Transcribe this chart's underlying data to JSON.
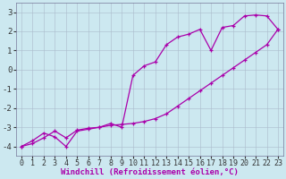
{
  "title": "",
  "xlabel": "Windchill (Refroidissement éolien,°C)",
  "ylabel": "",
  "xlim": [
    -0.5,
    23.5
  ],
  "ylim": [
    -4.5,
    3.5
  ],
  "xticks": [
    0,
    1,
    2,
    3,
    4,
    5,
    6,
    7,
    8,
    9,
    10,
    11,
    12,
    13,
    14,
    15,
    16,
    17,
    18,
    19,
    20,
    21,
    22,
    23
  ],
  "yticks": [
    -4,
    -3,
    -2,
    -1,
    0,
    1,
    2,
    3
  ],
  "bg_color": "#cce8f0",
  "line_color": "#aa00aa",
  "line1_x": [
    0,
    1,
    2,
    3,
    4,
    5,
    6,
    7,
    8,
    9,
    10,
    11,
    12,
    13,
    14,
    15,
    16,
    17,
    18,
    19,
    20,
    21,
    22,
    23
  ],
  "line1_y": [
    -4.0,
    -3.7,
    -3.3,
    -3.5,
    -4.0,
    -3.2,
    -3.1,
    -3.0,
    -2.8,
    -3.0,
    -0.3,
    0.2,
    0.4,
    1.3,
    1.7,
    1.85,
    2.1,
    1.0,
    2.2,
    2.3,
    2.8,
    2.85,
    2.8,
    2.1
  ],
  "line2_x": [
    0,
    1,
    2,
    3,
    4,
    5,
    6,
    7,
    8,
    9,
    10,
    11,
    12,
    13,
    14,
    15,
    16,
    17,
    18,
    19,
    20,
    21,
    22,
    23
  ],
  "line2_y": [
    -4.0,
    -3.85,
    -3.55,
    -3.2,
    -3.55,
    -3.15,
    -3.05,
    -3.0,
    -2.9,
    -2.85,
    -2.8,
    -2.7,
    -2.55,
    -2.3,
    -1.9,
    -1.5,
    -1.1,
    -0.7,
    -0.3,
    0.1,
    0.5,
    0.9,
    1.3,
    2.1
  ],
  "font_family": "monospace",
  "xlabel_fontsize": 6.5,
  "tick_fontsize": 6.0,
  "marker": "+",
  "markersize": 3.5,
  "linewidth": 0.9
}
